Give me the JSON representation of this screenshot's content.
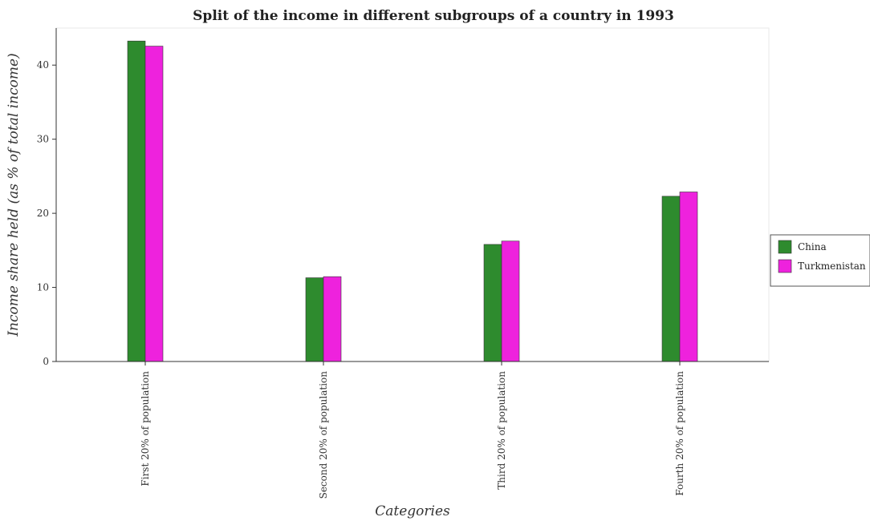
{
  "chart_data": {
    "type": "bar",
    "title": "Split of the income in different subgroups of a country in 1993",
    "xlabel": "Categories",
    "ylabel": "Income share held (as % of total income)",
    "categories": [
      "First 20% of population",
      "Second 20% of population",
      "Third 20% of population",
      "Fourth 20% of population"
    ],
    "series": [
      {
        "name": "China",
        "color": "#2e8b2e",
        "values": [
          43.25,
          11.3,
          15.8,
          22.3
        ]
      },
      {
        "name": "Turkmenistan",
        "color": "#ee22dd",
        "values": [
          42.56,
          11.45,
          16.25,
          22.88
        ]
      }
    ],
    "ylim": [
      0,
      45
    ],
    "yticks": [
      0,
      10,
      20,
      30,
      40
    ],
    "grid": false,
    "legend_position": "right"
  }
}
